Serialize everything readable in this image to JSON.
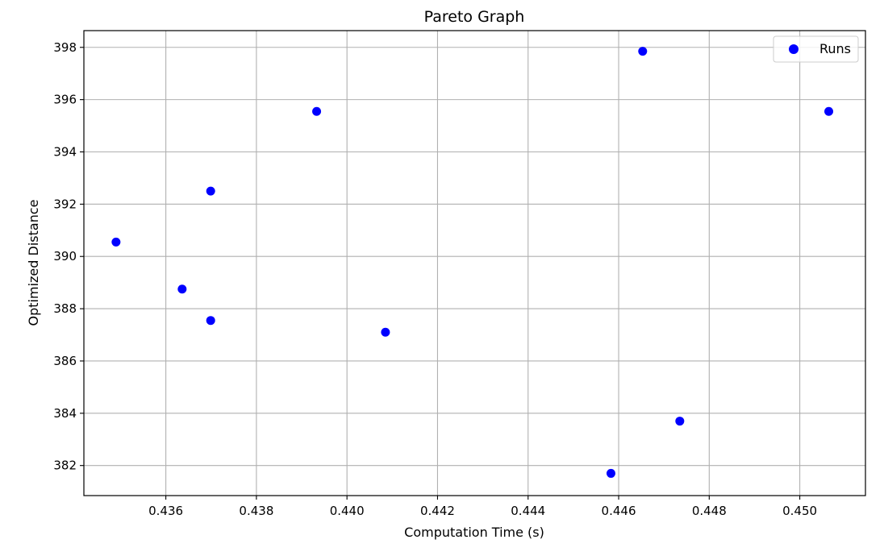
{
  "chart_data": {
    "type": "scatter",
    "title": "Pareto Graph",
    "xlabel": "Computation Time (s)",
    "ylabel": "Optimized Distance",
    "xlim": [
      0.43419,
      0.45145
    ],
    "ylim": [
      380.85,
      398.64
    ],
    "grid": true,
    "legend_position": "top-right",
    "x_ticks": [
      0.436,
      0.438,
      0.44,
      0.442,
      0.444,
      0.446,
      0.448,
      0.45
    ],
    "x_tick_labels": [
      "0.436",
      "0.438",
      "0.440",
      "0.442",
      "0.444",
      "0.446",
      "0.448",
      "0.450"
    ],
    "y_ticks": [
      382,
      384,
      386,
      388,
      390,
      392,
      394,
      396,
      398
    ],
    "y_tick_labels": [
      "382",
      "384",
      "386",
      "388",
      "390",
      "392",
      "394",
      "396",
      "398"
    ],
    "series": [
      {
        "name": "Runs",
        "color": "#0000ff",
        "marker": "circle",
        "points": [
          {
            "x": 0.4349,
            "y": 390.55
          },
          {
            "x": 0.43636,
            "y": 388.75
          },
          {
            "x": 0.43699,
            "y": 392.5
          },
          {
            "x": 0.43699,
            "y": 387.55
          },
          {
            "x": 0.43933,
            "y": 395.55
          },
          {
            "x": 0.44085,
            "y": 387.1
          },
          {
            "x": 0.44583,
            "y": 381.7
          },
          {
            "x": 0.44653,
            "y": 397.85
          },
          {
            "x": 0.44735,
            "y": 383.7
          },
          {
            "x": 0.45064,
            "y": 395.55
          }
        ]
      }
    ]
  }
}
